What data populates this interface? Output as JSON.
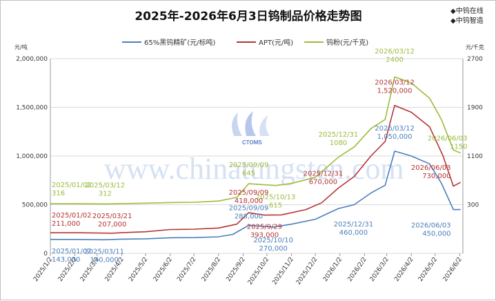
{
  "title": "2025年-2026年6月3日钨制品价格走势图",
  "brand": {
    "line1": "中钨在线",
    "line2": "中钨智造"
  },
  "watermark": {
    "text": "www.chinatungsten.com",
    "logo": "CTOMS"
  },
  "chart_data": {
    "type": "line",
    "left_axis": {
      "unit": "元/吨",
      "ticks": [
        "2,000,000",
        "1,500,000",
        "1,000,000",
        "500,000",
        "0"
      ],
      "range": [
        0,
        2000000
      ]
    },
    "right_axis": {
      "unit": "元/千克",
      "ticks": [
        "2700",
        "1900",
        "1100",
        "300"
      ],
      "range": [
        -500,
        2700
      ]
    },
    "x_ticks": [
      "2025/1/2",
      "2025/2/2",
      "2025/3/2",
      "2025/4/2",
      "2025/5/2",
      "2025/6/2",
      "2025/7/2",
      "2025/8/2",
      "2025/9/2",
      "2025/10/2",
      "2025/11/2",
      "2025/12/2",
      "2026/1/2",
      "2026/2/2",
      "2026/3/2",
      "2026/4/2",
      "2026/5/2",
      "2026/6/2"
    ],
    "grid": "horizontal",
    "legend_position": "top",
    "series": [
      {
        "name": "65%黑钨精矿(元/标吨)",
        "axis": "left",
        "color": "#4a7ebb",
        "points": [
          [
            "2025/01/02",
            143000
          ],
          [
            "2025/02/02",
            143000
          ],
          [
            "2025/03/11",
            140000
          ],
          [
            "2025/04/02",
            146000
          ],
          [
            "2025/05/02",
            150000
          ],
          [
            "2025/06/02",
            160000
          ],
          [
            "2025/07/02",
            162000
          ],
          [
            "2025/08/02",
            170000
          ],
          [
            "2025/08/20",
            195000
          ],
          [
            "2025/09/09",
            288000
          ],
          [
            "2025/10/10",
            270000
          ],
          [
            "2025/11/02",
            300000
          ],
          [
            "2025/12/02",
            350000
          ],
          [
            "2025/12/31",
            460000
          ],
          [
            "2026/01/20",
            500000
          ],
          [
            "2026/02/10",
            620000
          ],
          [
            "2026/02/28",
            700000
          ],
          [
            "2026/03/12",
            1050000
          ],
          [
            "2026/04/02",
            1000000
          ],
          [
            "2026/04/25",
            920000
          ],
          [
            "2026/05/10",
            720000
          ],
          [
            "2026/05/25",
            450000
          ],
          [
            "2026/06/03",
            450000
          ]
        ]
      },
      {
        "name": "APT(元/吨)",
        "axis": "left",
        "color": "#b53333",
        "points": [
          [
            "2025/01/02",
            211000
          ],
          [
            "2025/02/02",
            212000
          ],
          [
            "2025/03/21",
            207000
          ],
          [
            "2025/04/02",
            212000
          ],
          [
            "2025/05/02",
            222000
          ],
          [
            "2025/06/02",
            245000
          ],
          [
            "2025/07/02",
            248000
          ],
          [
            "2025/08/02",
            260000
          ],
          [
            "2025/08/25",
            300000
          ],
          [
            "2025/09/09",
            418000
          ],
          [
            "2025/09/29",
            393000
          ],
          [
            "2025/10/20",
            395000
          ],
          [
            "2025/11/20",
            450000
          ],
          [
            "2025/12/10",
            520000
          ],
          [
            "2025/12/31",
            670000
          ],
          [
            "2026/01/20",
            790000
          ],
          [
            "2026/02/10",
            1000000
          ],
          [
            "2026/02/28",
            1150000
          ],
          [
            "2026/03/12",
            1520000
          ],
          [
            "2026/04/02",
            1450000
          ],
          [
            "2026/04/25",
            1300000
          ],
          [
            "2026/05/12",
            1000000
          ],
          [
            "2026/05/25",
            690000
          ],
          [
            "2026/06/03",
            730000
          ]
        ]
      },
      {
        "name": "钨粉(元/千克)",
        "axis": "right",
        "color": "#9bbb3b",
        "points": [
          [
            "2025/01/02",
            316
          ],
          [
            "2025/02/02",
            316
          ],
          [
            "2025/03/12",
            312
          ],
          [
            "2025/04/02",
            318
          ],
          [
            "2025/05/02",
            325
          ],
          [
            "2025/06/02",
            335
          ],
          [
            "2025/07/02",
            340
          ],
          [
            "2025/08/02",
            360
          ],
          [
            "2025/08/25",
            420
          ],
          [
            "2025/09/09",
            645
          ],
          [
            "2025/10/13",
            615
          ],
          [
            "2025/11/02",
            650
          ],
          [
            "2025/12/02",
            750
          ],
          [
            "2025/12/31",
            1080
          ],
          [
            "2026/01/20",
            1250
          ],
          [
            "2026/02/10",
            1550
          ],
          [
            "2026/02/28",
            1700
          ],
          [
            "2026/03/12",
            2400
          ],
          [
            "2026/04/02",
            2300
          ],
          [
            "2026/04/25",
            2050
          ],
          [
            "2026/05/10",
            1700
          ],
          [
            "2026/05/25",
            1200
          ],
          [
            "2026/06/03",
            1150
          ]
        ]
      }
    ],
    "annotations": [
      {
        "series": 2,
        "lines": [
          "2025/01/02",
          "316"
        ],
        "at": [
          "2025/01/02",
          316
        ]
      },
      {
        "series": 2,
        "lines": [
          "2025/03/12",
          "312"
        ],
        "at": [
          "2025/03/12",
          312
        ]
      },
      {
        "series": 2,
        "lines": [
          "2025/09/09",
          "645"
        ],
        "at": [
          "2025/09/09",
          645
        ]
      },
      {
        "series": 2,
        "lines": [
          "2025/10/13",
          "615"
        ],
        "at": [
          "2025/10/13",
          615
        ]
      },
      {
        "series": 2,
        "lines": [
          "2025/12/31",
          "1080"
        ],
        "at": [
          "2025/12/31",
          1080
        ]
      },
      {
        "series": 2,
        "lines": [
          "2026/03/12",
          "2400"
        ],
        "at": [
          "2026/03/12",
          2400
        ]
      },
      {
        "series": 2,
        "lines": [
          "2026/06/03",
          "1150"
        ],
        "at": [
          "2026/06/03",
          1150
        ]
      },
      {
        "series": 1,
        "lines": [
          "2025/01/02",
          "211,000"
        ],
        "at": [
          "2025/01/02",
          211000
        ]
      },
      {
        "series": 1,
        "lines": [
          "2025/03/21",
          "207,000"
        ],
        "at": [
          "2025/03/21",
          207000
        ]
      },
      {
        "series": 1,
        "lines": [
          "2025/09/09",
          "418,000"
        ],
        "at": [
          "2025/09/09",
          418000
        ]
      },
      {
        "series": 1,
        "lines": [
          "2025/9/29",
          "393,000"
        ],
        "at": [
          "2025/09/29",
          393000
        ]
      },
      {
        "series": 1,
        "lines": [
          "2025/12/31",
          "670,000"
        ],
        "at": [
          "2025/12/31",
          670000
        ]
      },
      {
        "series": 1,
        "lines": [
          "2026/03/12",
          "1,520,000"
        ],
        "at": [
          "2026/03/12",
          1520000
        ]
      },
      {
        "series": 1,
        "lines": [
          "2026/06/03",
          "730,000"
        ],
        "at": [
          "2026/06/03",
          730000
        ]
      },
      {
        "series": 0,
        "lines": [
          "2025/01/02",
          "143,000"
        ],
        "at": [
          "2025/01/02",
          143000
        ]
      },
      {
        "series": 0,
        "lines": [
          "2025/03/11",
          "140,000"
        ],
        "at": [
          "2025/03/11",
          140000
        ]
      },
      {
        "series": 0,
        "lines": [
          "2025/09/09",
          "288,000"
        ],
        "at": [
          "2025/09/09",
          288000
        ]
      },
      {
        "series": 0,
        "lines": [
          "2025/10/10",
          "270,000"
        ],
        "at": [
          "2025/10/10",
          270000
        ]
      },
      {
        "series": 0,
        "lines": [
          "2025/12/31",
          "460,000"
        ],
        "at": [
          "2025/12/31",
          460000
        ]
      },
      {
        "series": 0,
        "lines": [
          "2026/03/12",
          "1,050,000"
        ],
        "at": [
          "2026/03/12",
          1050000
        ]
      },
      {
        "series": 0,
        "lines": [
          "2026/06/03",
          "450,000"
        ],
        "at": [
          "2026/06/03",
          450000
        ]
      }
    ]
  }
}
